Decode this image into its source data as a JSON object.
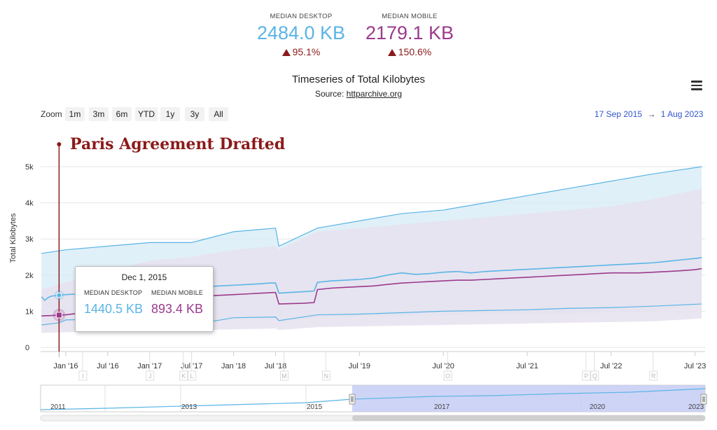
{
  "header": {
    "desktop": {
      "label": "MEDIAN DESKTOP",
      "value": "2484.0 KB",
      "change": "95.1%",
      "color": "#5ab4e6"
    },
    "mobile": {
      "label": "MEDIAN MOBILE",
      "value": "2179.1 KB",
      "change": "150.6%",
      "color": "#9b3a8c"
    }
  },
  "toolbar": {
    "zoom_label": "Zoom",
    "zoom_buttons": [
      "1m",
      "3m",
      "6m",
      "YTD",
      "1y",
      "3y",
      "All"
    ],
    "range_from": "17 Sep 2015",
    "range_arrow": "→",
    "range_to": "1 Aug 2023",
    "menu_icon": "hamburger-menu-icon"
  },
  "tooltip": {
    "date": "Dec 1, 2015",
    "desktop_label": "MEDIAN DESKTOP",
    "mobile_label": "MEDIAN MOBILE",
    "desktop_value": "1440.5 KB",
    "mobile_value": "893.4 KB"
  },
  "annotation": {
    "text": "Paris Agreement Drafted",
    "date": "Dec 1, 2015",
    "color": "#8b1a1a"
  },
  "navigator": {
    "labels": [
      "2011",
      "2013",
      "2015",
      "2017",
      "2020",
      "2023"
    ]
  },
  "chart_data": {
    "type": "line",
    "title": "Timeseries of Total Kilobytes",
    "subtitle_prefix": "Source: ",
    "subtitle_link": "httparchive.org",
    "ylabel": "Total Kilobytes",
    "ylim": [
      0,
      5000
    ],
    "yticks": [
      "0",
      "1k",
      "2k",
      "3k",
      "4k",
      "5k"
    ],
    "xlim": [
      2015.7,
      2023.62
    ],
    "xticks": [
      {
        "label": "Jan '16",
        "x": 2016.0
      },
      {
        "label": "Jul '16",
        "x": 2016.5
      },
      {
        "label": "Jan '17",
        "x": 2017.0
      },
      {
        "label": "Jul '17",
        "x": 2017.5
      },
      {
        "label": "Jan '18",
        "x": 2018.0
      },
      {
        "label": "Jul '18",
        "x": 2018.5
      },
      {
        "label": "Jul '19",
        "x": 2019.5
      },
      {
        "label": "Jul '20",
        "x": 2020.5
      },
      {
        "label": "Jul '21",
        "x": 2021.5
      },
      {
        "label": "Jul '22",
        "x": 2022.5
      },
      {
        "label": "Jul '23",
        "x": 2023.5
      }
    ],
    "event_flags": [
      {
        "label": "I",
        "x": 2016.2
      },
      {
        "label": "J",
        "x": 2017.0
      },
      {
        "label": "K",
        "x": 2017.4
      },
      {
        "label": "L",
        "x": 2017.5
      },
      {
        "label": "M",
        "x": 2018.6
      },
      {
        "label": "N",
        "x": 2019.1
      },
      {
        "label": "O",
        "x": 2020.55
      },
      {
        "label": "P",
        "x": 2022.2
      },
      {
        "label": "Q",
        "x": 2022.3
      },
      {
        "label": "R",
        "x": 2023.0
      }
    ],
    "series": [
      {
        "name": "MEDIAN DESKTOP",
        "color": "#5ab4e6",
        "x": [
          2015.71,
          2015.75,
          2015.79,
          2015.83,
          2015.92,
          2016.0,
          2016.17,
          2016.33,
          2016.5,
          2016.67,
          2016.83,
          2017.0,
          2017.17,
          2017.33,
          2017.42,
          2017.5,
          2017.58,
          2017.67,
          2017.83,
          2018.0,
          2018.17,
          2018.33,
          2018.42,
          2018.5,
          2018.54,
          2018.67,
          2018.83,
          2018.96,
          2019.0,
          2019.17,
          2019.33,
          2019.5,
          2019.67,
          2019.83,
          2020.0,
          2020.17,
          2020.33,
          2020.5,
          2020.67,
          2020.83,
          2021.0,
          2021.17,
          2021.33,
          2021.5,
          2021.67,
          2021.83,
          2022.0,
          2022.17,
          2022.33,
          2022.5,
          2022.67,
          2022.83,
          2023.0,
          2023.17,
          2023.33,
          2023.5,
          2023.58
        ],
        "values": [
          1400,
          1300,
          1380,
          1420,
          1440,
          1460,
          1480,
          1500,
          1520,
          1560,
          1580,
          1620,
          1600,
          1380,
          1400,
          1420,
          1660,
          1680,
          1700,
          1720,
          1740,
          1760,
          1780,
          1780,
          1500,
          1520,
          1540,
          1560,
          1800,
          1840,
          1860,
          1880,
          1920,
          2000,
          2060,
          2020,
          2040,
          2080,
          2100,
          2060,
          2100,
          2120,
          2140,
          2160,
          2180,
          2200,
          2220,
          2240,
          2260,
          2280,
          2300,
          2320,
          2340,
          2380,
          2420,
          2460,
          2484
        ]
      },
      {
        "name": "MEDIAN MOBILE",
        "color": "#9b3a8c",
        "x": [
          2015.71,
          2015.83,
          2015.92,
          2016.0,
          2016.17,
          2016.33,
          2016.5,
          2016.67,
          2016.83,
          2017.0,
          2017.17,
          2017.33,
          2017.42,
          2017.5,
          2017.58,
          2017.67,
          2017.83,
          2018.0,
          2018.17,
          2018.33,
          2018.5,
          2018.54,
          2018.67,
          2018.83,
          2018.96,
          2019.0,
          2019.17,
          2019.33,
          2019.5,
          2019.67,
          2019.83,
          2020.0,
          2020.17,
          2020.33,
          2020.5,
          2020.67,
          2020.83,
          2021.0,
          2021.17,
          2021.33,
          2021.5,
          2021.67,
          2021.83,
          2022.0,
          2022.17,
          2022.33,
          2022.5,
          2022.67,
          2022.83,
          2023.0,
          2023.17,
          2023.33,
          2023.5,
          2023.58
        ],
        "values": [
          870,
          880,
          893,
          900,
          950,
          1000,
          1050,
          1100,
          1150,
          1200,
          1280,
          1300,
          1300,
          1300,
          1400,
          1420,
          1440,
          1460,
          1480,
          1500,
          1520,
          1200,
          1210,
          1220,
          1240,
          1600,
          1640,
          1660,
          1680,
          1700,
          1740,
          1780,
          1800,
          1820,
          1840,
          1860,
          1860,
          1880,
          1900,
          1920,
          1940,
          1960,
          1980,
          2000,
          2020,
          2040,
          2060,
          2060,
          2060,
          2080,
          2100,
          2120,
          2150,
          2179
        ]
      }
    ],
    "bands": [
      {
        "name": "desktop-percentile-band",
        "color": "#d6ebf6",
        "x": [
          2015.71,
          2016.0,
          2016.5,
          2017.0,
          2017.5,
          2018.0,
          2018.5,
          2018.54,
          2019.0,
          2019.5,
          2020.0,
          2020.5,
          2021.0,
          2021.5,
          2022.0,
          2022.5,
          2023.0,
          2023.58
        ],
        "upper": [
          2600,
          2700,
          2800,
          2900,
          2900,
          3200,
          3300,
          2800,
          3300,
          3500,
          3700,
          3800,
          4000,
          4200,
          4400,
          4600,
          4800,
          5000
        ],
        "lower": [
          680,
          700,
          720,
          740,
          760,
          780,
          800,
          700,
          820,
          840,
          860,
          880,
          900,
          920,
          940,
          960,
          1000,
          1200
        ]
      },
      {
        "name": "mobile-percentile-band",
        "color": "#e6e2ef",
        "x": [
          2015.71,
          2016.0,
          2016.5,
          2017.0,
          2017.5,
          2018.0,
          2018.5,
          2018.54,
          2019.0,
          2019.5,
          2020.0,
          2020.5,
          2021.0,
          2021.5,
          2022.0,
          2022.5,
          2023.0,
          2023.58
        ],
        "upper": [
          1600,
          1800,
          2100,
          2400,
          2500,
          2700,
          2800,
          2700,
          3200,
          3300,
          3400,
          3500,
          3600,
          3700,
          3800,
          3900,
          4100,
          4400
        ],
        "lower": [
          400,
          420,
          440,
          460,
          480,
          500,
          520,
          480,
          560,
          580,
          600,
          620,
          640,
          660,
          680,
          700,
          720,
          800
        ]
      }
    ],
    "lower_series": {
      "name": "desktop-low",
      "color": "#5ab4e6",
      "x": [
        2015.71,
        2015.92,
        2016.0,
        2016.5,
        2017.0,
        2017.33,
        2017.5,
        2018.0,
        2018.5,
        2018.54,
        2019.0,
        2019.5,
        2020.0,
        2020.5,
        2021.0,
        2021.5,
        2022.0,
        2022.5,
        2023.0,
        2023.58
      ],
      "values": [
        620,
        680,
        760,
        780,
        800,
        600,
        620,
        820,
        840,
        740,
        900,
        920,
        960,
        1000,
        1020,
        1040,
        1080,
        1100,
        1140,
        1200
      ]
    }
  }
}
